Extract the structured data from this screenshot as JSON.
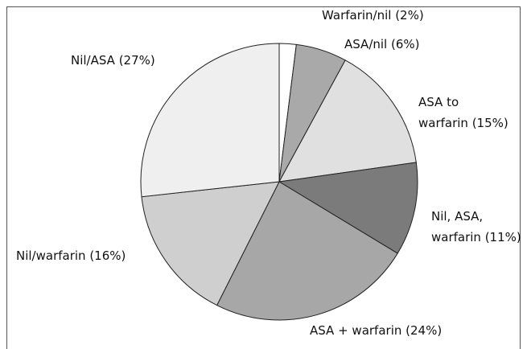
{
  "chart_data": {
    "type": "pie",
    "categories": [
      "Warfarin/nil (2%)",
      "ASA/nil (6%)",
      "ASA to\nwarfarin (15%)",
      "Nil, ASA,\nwarfarin (11%)",
      "ASA + warfarin (24%)",
      "Nil/warfarin (16%)",
      "Nil/ASA (27%)"
    ],
    "values": [
      2,
      6,
      15,
      11,
      24,
      16,
      27
    ],
    "colors": [
      "#ffffff",
      "#a9a9a9",
      "#e0e0e0",
      "#7b7b7b",
      "#a7a7a7",
      "#cfcfcf",
      "#efefef"
    ]
  }
}
